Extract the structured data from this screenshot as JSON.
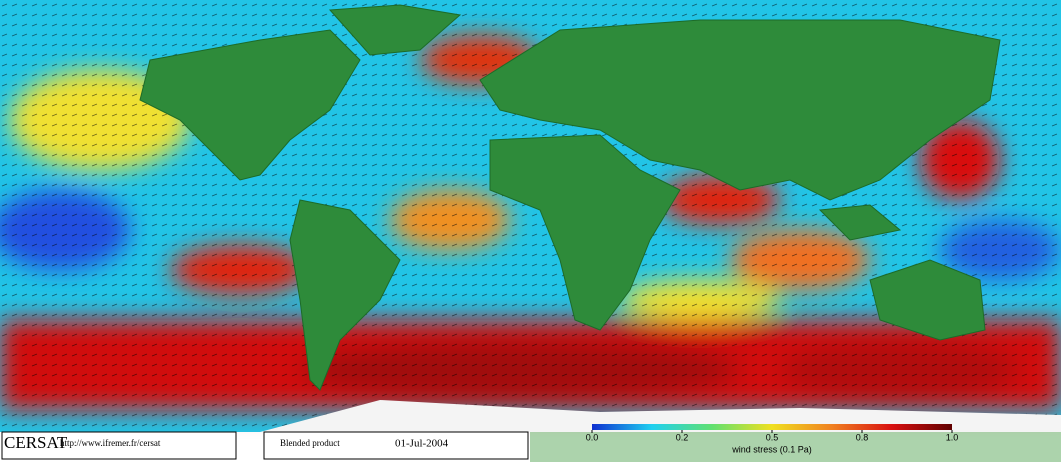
{
  "logo": {
    "name": "CERSAT",
    "url": "http://www.ifremer.fr/cersat"
  },
  "product": {
    "label": "Blended product",
    "date": "01-Jul-2004"
  },
  "colorbar": {
    "label": "wind stress (0.1 Pa)",
    "ticks": [
      {
        "value": 0,
        "label": "0.0"
      },
      0.2,
      0.5,
      0.8,
      {
        "value": 1,
        "label": "1.0"
      }
    ],
    "colors": [
      "#1030d0",
      "#20d0f0",
      "#60e070",
      "#f0e020",
      "#f08020",
      "#d81010",
      "#600000"
    ]
  }
}
